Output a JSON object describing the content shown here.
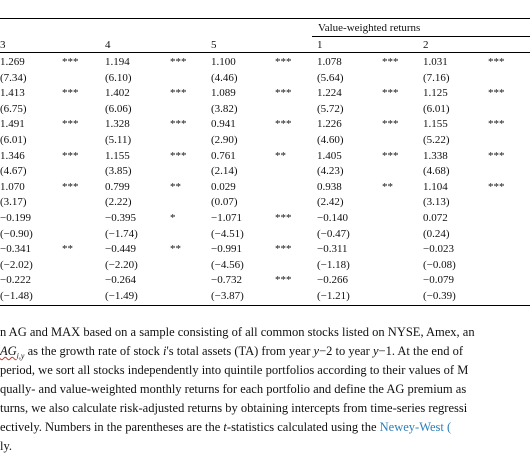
{
  "table": {
    "group_header": "Value-weighted returns",
    "column_headers": [
      "3",
      "4",
      "5",
      "1",
      "2"
    ],
    "rows": [
      [
        "1.269",
        "***",
        "1.194",
        "***",
        "1.100",
        "***",
        "1.078",
        "***",
        "1.031",
        "***"
      ],
      [
        "(7.34)",
        "",
        "(6.10)",
        "",
        "(4.46)",
        "",
        "(5.64)",
        "",
        "(7.16)",
        ""
      ],
      [
        "1.413",
        "***",
        "1.402",
        "***",
        "1.089",
        "***",
        "1.224",
        "***",
        "1.125",
        "***"
      ],
      [
        "(6.75)",
        "",
        "(6.06)",
        "",
        "(3.82)",
        "",
        "(5.72)",
        "",
        "(6.01)",
        ""
      ],
      [
        "1.491",
        "***",
        "1.328",
        "***",
        "0.941",
        "***",
        "1.226",
        "***",
        "1.155",
        "***"
      ],
      [
        "(6.01)",
        "",
        "(5.11)",
        "",
        "(2.90)",
        "",
        "(4.60)",
        "",
        "(5.22)",
        ""
      ],
      [
        "1.346",
        "***",
        "1.155",
        "***",
        "0.761",
        "**",
        "1.405",
        "***",
        "1.338",
        "***"
      ],
      [
        "(4.67)",
        "",
        "(3.85)",
        "",
        "(2.14)",
        "",
        "(4.23)",
        "",
        "(4.68)",
        ""
      ],
      [
        "1.070",
        "***",
        "0.799",
        "**",
        "0.029",
        "",
        "0.938",
        "**",
        "1.104",
        "***"
      ],
      [
        "(3.17)",
        "",
        "(2.22)",
        "",
        "(0.07)",
        "",
        "(2.42)",
        "",
        "(3.13)",
        ""
      ],
      [
        "−0.199",
        "",
        "−0.395",
        "*",
        "−1.071",
        "***",
        "−0.140",
        "",
        "0.072",
        ""
      ],
      [
        "(−0.90)",
        "",
        "(−1.74)",
        "",
        "(−4.51)",
        "",
        "(−0.47)",
        "",
        "(0.24)",
        ""
      ],
      [
        "−0.341",
        "**",
        "−0.449",
        "**",
        "−0.991",
        "***",
        "−0.311",
        "",
        "−0.023",
        ""
      ],
      [
        "(−2.02)",
        "",
        "(−2.20)",
        "",
        "(−4.56)",
        "",
        "(−1.18)",
        "",
        "(−0.08)",
        ""
      ],
      [
        "−0.222",
        "",
        "−0.264",
        "",
        "−0.732",
        "***",
        "−0.266",
        "",
        "−0.079",
        ""
      ],
      [
        "(−1.48)",
        "",
        "(−1.49)",
        "",
        "(−3.87)",
        "",
        "(−1.21)",
        "",
        "(−0.39)",
        ""
      ]
    ]
  },
  "caption": {
    "line1": "n AG and MAX based on a sample consisting of all common stocks listed on NYSE, Amex, an",
    "line2_pre": "",
    "line2_var": "AG",
    "line2_sub": "i,y",
    "line2_mid": " as the growth rate of stock ",
    "line2_i": "i",
    "line2_post": "'s total assets (TA) from year ",
    "line2_y1": "y",
    "line2_post2": "−2 to year ",
    "line2_y2": "y",
    "line2_post3": "−1. At the end of ",
    "line3": " period, we sort all stocks independently into quintile portfolios according to their values of M",
    "line4": "qually- and value-weighted monthly returns for each portfolio and define the AG premium as",
    "line5": "turns, we also calculate risk-adjusted returns by obtaining intercepts from time-series regressi",
    "line6_pre": "ectively. Numbers in the parentheses are the ",
    "line6_t": "t",
    "line6_mid": "-statistics calculated using the ",
    "line6_link": "Newey-West (",
    "line7": "ly."
  }
}
